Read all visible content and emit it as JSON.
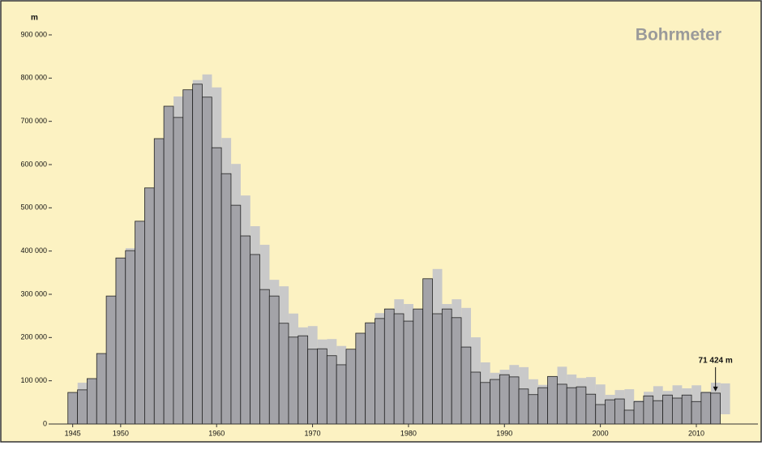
{
  "chart_data": {
    "type": "bar",
    "title": "Bohrmeter",
    "ylabel": "m",
    "x": [
      1945,
      1946,
      1947,
      1948,
      1949,
      1950,
      1951,
      1952,
      1953,
      1954,
      1955,
      1956,
      1957,
      1958,
      1959,
      1960,
      1961,
      1962,
      1963,
      1964,
      1965,
      1966,
      1967,
      1968,
      1969,
      1970,
      1971,
      1972,
      1973,
      1974,
      1975,
      1976,
      1977,
      1978,
      1979,
      1980,
      1981,
      1982,
      1983,
      1984,
      1985,
      1986,
      1987,
      1988,
      1989,
      1990,
      1991,
      1992,
      1993,
      1994,
      1995,
      1996,
      1997,
      1998,
      1999,
      2000,
      2001,
      2002,
      2003,
      2004,
      2005,
      2006,
      2007,
      2008,
      2009,
      2010,
      2011,
      2012
    ],
    "values": [
      73000,
      79000,
      105000,
      163000,
      296000,
      384000,
      401000,
      469000,
      546000,
      660000,
      735000,
      709000,
      773000,
      786000,
      756000,
      639000,
      579000,
      506000,
      435000,
      392000,
      311000,
      296000,
      233000,
      201000,
      204000,
      173000,
      174000,
      158000,
      137000,
      173000,
      210000,
      234000,
      244000,
      266000,
      255000,
      238000,
      266000,
      336000,
      255000,
      266000,
      246000,
      178000,
      120000,
      96000,
      103000,
      114000,
      109000,
      81000,
      68000,
      84000,
      110000,
      92000,
      84000,
      86000,
      69000,
      45000,
      56000,
      58000,
      32000,
      52000,
      65000,
      54000,
      67000,
      60000,
      67000,
      52000,
      73000,
      71424
    ],
    "value_labels": [
      null,
      null,
      null,
      null,
      null,
      null,
      null,
      null,
      null,
      null,
      null,
      null,
      null,
      null,
      null,
      null,
      null,
      null,
      null,
      null,
      null,
      null,
      null,
      null,
      null,
      null,
      null,
      null,
      null,
      null,
      null,
      null,
      null,
      null,
      null,
      null,
      null,
      null,
      null,
      null,
      null,
      null,
      null,
      null,
      null,
      null,
      null,
      null,
      null,
      null,
      null,
      null,
      null,
      null,
      null,
      null,
      null,
      null,
      null,
      null,
      null,
      null,
      null,
      null,
      null,
      null,
      null,
      "71 424 m"
    ],
    "color": "#a3a3a8",
    "shadow_color": "#c9c9c9",
    "xlim": [
      1943,
      2016
    ],
    "xticks": [
      1945,
      1950,
      1960,
      1970,
      1980,
      1990,
      2000,
      2010
    ],
    "ylim": [
      0,
      900000
    ],
    "yticks": [
      0,
      {
        "value": 100000,
        "label": "100 000"
      },
      {
        "value": 200000,
        "label": "200 000"
      },
      {
        "value": 300000,
        "label": "300 000"
      },
      {
        "value": 400000,
        "label": "400 000"
      },
      {
        "value": 500000,
        "label": "500 000"
      },
      {
        "value": 600000,
        "label": "600 000"
      },
      {
        "value": 700000,
        "label": "700 000"
      },
      {
        "value": 800000,
        "label": "800 000"
      },
      {
        "value": 900000,
        "label": "900 000"
      }
    ]
  }
}
